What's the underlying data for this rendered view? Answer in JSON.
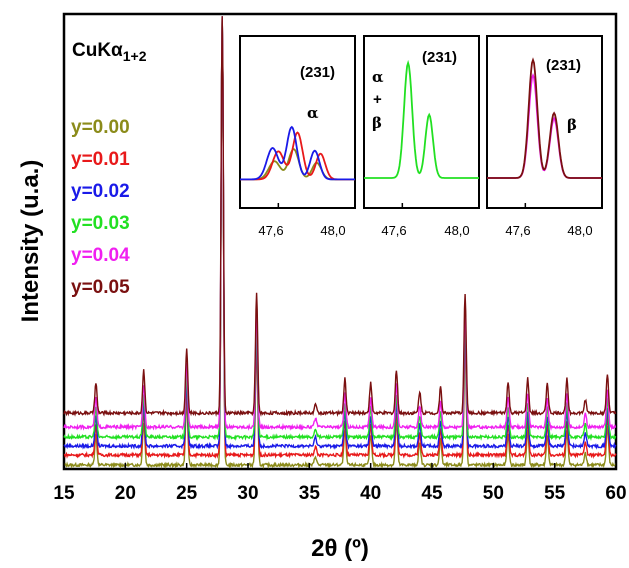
{
  "chart_data": {
    "type": "line",
    "xlabel": "2θ (º)",
    "ylabel": "Intensity (u.a.)",
    "xlim": [
      15,
      60
    ],
    "x_ticks": [
      "15",
      "20",
      "25",
      "30",
      "35",
      "40",
      "45",
      "50",
      "55",
      "60"
    ],
    "radiation_label_main": "CuKα",
    "radiation_label_sub": "1+2",
    "series": [
      {
        "name": "y=0.00",
        "color": "#8B8B1A"
      },
      {
        "name": "y=0.01",
        "color": "#E8191A"
      },
      {
        "name": "y=0.02",
        "color": "#1A1AE8"
      },
      {
        "name": "y=0.03",
        "color": "#22E022"
      },
      {
        "name": "y=0.04",
        "color": "#F020F0"
      },
      {
        "name": "y=0.05",
        "color": "#7A1010"
      }
    ],
    "peaks_2theta": [
      17.6,
      21.5,
      25.0,
      27.9,
      30.7,
      35.5,
      37.9,
      40.0,
      42.1,
      44.0,
      45.7,
      47.7,
      51.2,
      52.8,
      54.4,
      56.0,
      57.5,
      59.3
    ],
    "peak_intensities_rel": [
      0.07,
      0.1,
      0.15,
      1.0,
      0.28,
      0.02,
      0.08,
      0.07,
      0.1,
      0.05,
      0.06,
      0.28,
      0.07,
      0.08,
      0.07,
      0.08,
      0.03,
      0.09
    ],
    "insets": [
      {
        "peak_label": "(231)",
        "phase_label": "α",
        "series": [
          "y=0.00",
          "y=0.01",
          "y=0.02"
        ],
        "x_ticks": [
          "47,6",
          "48,0"
        ],
        "xlim": [
          47.4,
          48.0
        ]
      },
      {
        "peak_label": "(231)",
        "phase_label_top": "α",
        "phase_label_plus": "+",
        "phase_label_bottom": "β",
        "series": [
          "y=0.03"
        ],
        "x_ticks": [
          "47,6",
          "48,0"
        ],
        "xlim": [
          47.4,
          48.0
        ]
      },
      {
        "peak_label": "(231)",
        "phase_label": "β",
        "series": [
          "y=0.04",
          "y=0.05"
        ],
        "x_ticks": [
          "47,6",
          "48,0"
        ],
        "xlim": [
          47.4,
          48.0
        ]
      }
    ]
  }
}
